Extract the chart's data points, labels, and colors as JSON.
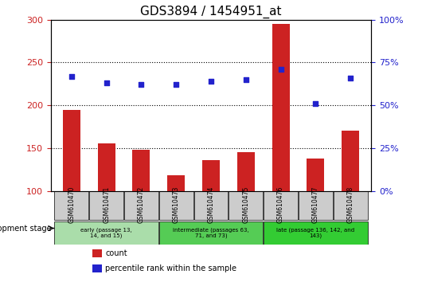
{
  "title": "GDS3894 / 1454951_at",
  "samples": [
    "GSM610470",
    "GSM610471",
    "GSM610472",
    "GSM610473",
    "GSM610474",
    "GSM610475",
    "GSM610476",
    "GSM610477",
    "GSM610478"
  ],
  "counts": [
    195,
    155,
    148,
    118,
    136,
    145,
    295,
    138,
    170
  ],
  "percentile_ranks": [
    67,
    63,
    62,
    62,
    64,
    65,
    71,
    51,
    66
  ],
  "ylim_left": [
    100,
    300
  ],
  "ylim_right": [
    0,
    100
  ],
  "yticks_left": [
    100,
    150,
    200,
    250,
    300
  ],
  "yticks_right": [
    0,
    25,
    50,
    75,
    100
  ],
  "bar_color": "#cc2222",
  "dot_color": "#2222cc",
  "groups": [
    {
      "label": "early (passage 13,\n14, and 15)",
      "samples": [
        0,
        1,
        2
      ],
      "color": "#aaddaa"
    },
    {
      "label": "intermediate (passages 63,\n71, and 73)",
      "samples": [
        3,
        4,
        5
      ],
      "color": "#55cc55"
    },
    {
      "label": "late (passage 136, 142, and\n143)",
      "samples": [
        6,
        7,
        8
      ],
      "color": "#33cc33"
    }
  ],
  "dev_stage_label": "development stage",
  "legend_count_label": "count",
  "legend_pct_label": "percentile rank within the sample",
  "grid_color": "#000000",
  "tick_area_bg": "#cccccc",
  "plot_bg": "#ffffff"
}
